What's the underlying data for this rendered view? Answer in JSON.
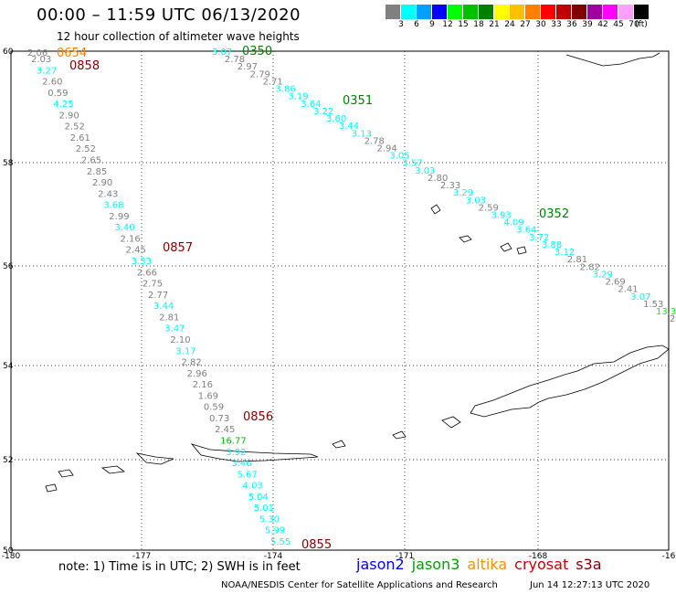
{
  "title": "00:00 – 11:59 UTC 06/13/2020",
  "subtitle": "12 hour collection of altimeter wave heights",
  "legend": {
    "colors": [
      "#808080",
      "#00ffff",
      "#00a0ff",
      "#0000ff",
      "#00ff00",
      "#00c000",
      "#008000",
      "#ffff00",
      "#ffc000",
      "#ff8000",
      "#ff0000",
      "#c00000",
      "#800000",
      "#a000a0",
      "#ff00ff",
      "#ffa0ff",
      "#000000"
    ],
    "labels": [
      "3",
      "6",
      "9",
      "12",
      "15",
      "18",
      "21",
      "24",
      "27",
      "30",
      "33",
      "36",
      "39",
      "42",
      "45",
      "70",
      "(ft)"
    ]
  },
  "axes": {
    "lon_labels": [
      "-180",
      "-177",
      "-174",
      "-171",
      "-168",
      "-16"
    ],
    "lat_labels": [
      "60",
      "58",
      "56",
      "54",
      "52",
      "50"
    ]
  },
  "tracks": [
    {
      "color": "#808080",
      "label": "0654",
      "label_color": "#ff8000",
      "points": [
        {
          "v": "2.03",
          "c": "#808080"
        },
        {
          "v": "3.27",
          "c": "#00ffff"
        },
        {
          "v": "2.60",
          "c": "#808080"
        },
        {
          "v": "0.59",
          "c": "#808080"
        },
        {
          "v": "4.25",
          "c": "#00ffff"
        },
        {
          "v": "2.90",
          "c": "#808080"
        },
        {
          "v": "2.52",
          "c": "#808080"
        },
        {
          "v": "2.61",
          "c": "#808080"
        },
        {
          "v": "2.52",
          "c": "#808080"
        },
        {
          "v": "2.65",
          "c": "#808080"
        },
        {
          "v": "2.85",
          "c": "#808080"
        },
        {
          "v": "2.90",
          "c": "#808080"
        },
        {
          "v": "2.43",
          "c": "#808080"
        },
        {
          "v": "3.68",
          "c": "#00ffff"
        },
        {
          "v": "2.99",
          "c": "#808080"
        },
        {
          "v": "3.40",
          "c": "#00ffff"
        },
        {
          "v": "2.16",
          "c": "#808080"
        },
        {
          "v": "2.45",
          "c": "#808080"
        },
        {
          "v": "3.33",
          "c": "#00ffff"
        },
        {
          "v": "2.66",
          "c": "#808080"
        },
        {
          "v": "2.75",
          "c": "#808080"
        },
        {
          "v": "2.77",
          "c": "#808080"
        },
        {
          "v": "3.44",
          "c": "#00ffff"
        },
        {
          "v": "2.81",
          "c": "#808080"
        },
        {
          "v": "3.47",
          "c": "#00ffff"
        },
        {
          "v": "2.10",
          "c": "#808080"
        },
        {
          "v": "3.17",
          "c": "#00ffff"
        },
        {
          "v": "2.82",
          "c": "#808080"
        },
        {
          "v": "2.96",
          "c": "#808080"
        },
        {
          "v": "2.16",
          "c": "#808080"
        },
        {
          "v": "1.69",
          "c": "#808080"
        },
        {
          "v": "0.59",
          "c": "#808080"
        },
        {
          "v": "0.73",
          "c": "#808080"
        },
        {
          "v": "2.45",
          "c": "#808080"
        },
        {
          "v": "16.77",
          "c": "#00c000"
        },
        {
          "v": "3.92",
          "c": "#00ffff"
        },
        {
          "v": "3.46",
          "c": "#00ffff"
        },
        {
          "v": "5.67",
          "c": "#00ffff"
        },
        {
          "v": "4.03",
          "c": "#00ffff"
        },
        {
          "v": "5.04",
          "c": "#00ffff"
        },
        {
          "v": "5.01",
          "c": "#00ffff"
        },
        {
          "v": "5.30",
          "c": "#00ffff"
        },
        {
          "v": "5.99",
          "c": "#00ffff"
        },
        {
          "v": "5.55",
          "c": "#00ffff"
        }
      ]
    },
    {
      "color": "#808080",
      "label": "0350",
      "label_color": "#008000",
      "points": [
        {
          "v": "3.07",
          "c": "#00ffff"
        },
        {
          "v": "2.78",
          "c": "#808080"
        },
        {
          "v": "2.97",
          "c": "#808080"
        },
        {
          "v": "2.79",
          "c": "#808080"
        },
        {
          "v": "2.71",
          "c": "#808080"
        },
        {
          "v": "3.86",
          "c": "#00ffff"
        },
        {
          "v": "3.19",
          "c": "#00ffff"
        },
        {
          "v": "3.64",
          "c": "#00ffff"
        },
        {
          "v": "3.22",
          "c": "#00ffff"
        },
        {
          "v": "3.60",
          "c": "#00ffff"
        },
        {
          "v": "3.44",
          "c": "#00ffff"
        },
        {
          "v": "3.13",
          "c": "#00ffff"
        },
        {
          "v": "2.78",
          "c": "#808080"
        },
        {
          "v": "2.94",
          "c": "#808080"
        },
        {
          "v": "3.05",
          "c": "#00ffff"
        },
        {
          "v": "3.57",
          "c": "#00ffff"
        },
        {
          "v": "3.03",
          "c": "#00ffff"
        },
        {
          "v": "2.80",
          "c": "#808080"
        },
        {
          "v": "2.33",
          "c": "#808080"
        },
        {
          "v": "3.29",
          "c": "#00ffff"
        },
        {
          "v": "3.03",
          "c": "#00ffff"
        },
        {
          "v": "2.59",
          "c": "#808080"
        },
        {
          "v": "3.93",
          "c": "#00ffff"
        },
        {
          "v": "4.09",
          "c": "#00ffff"
        },
        {
          "v": "3.64",
          "c": "#00ffff"
        },
        {
          "v": "3.72",
          "c": "#00ffff"
        },
        {
          "v": "3.88",
          "c": "#00ffff"
        },
        {
          "v": "3.12",
          "c": "#00ffff"
        },
        {
          "v": "2.81",
          "c": "#808080"
        },
        {
          "v": "2.82",
          "c": "#808080"
        },
        {
          "v": "3.29",
          "c": "#00ffff"
        },
        {
          "v": "2.69",
          "c": "#808080"
        },
        {
          "v": "2.41",
          "c": "#808080"
        },
        {
          "v": "3.07",
          "c": "#00ffff"
        },
        {
          "v": "1.53",
          "c": "#808080"
        },
        {
          "v": "13.3",
          "c": "#00ff00"
        }
      ]
    }
  ],
  "pass_labels": [
    {
      "text": "0654",
      "color": "#ff8000"
    },
    {
      "text": "0858",
      "color": "#800000"
    },
    {
      "text": "0350",
      "color": "#008000"
    },
    {
      "text": "0351",
      "color": "#008000"
    },
    {
      "text": "0352",
      "color": "#008000"
    },
    {
      "text": "0857",
      "color": "#800000"
    },
    {
      "text": "0856",
      "color": "#800000"
    },
    {
      "text": "0855",
      "color": "#800000"
    }
  ],
  "note": "note:  1) Time is in UTC;  2) SWH is in feet",
  "satellites": [
    {
      "name": "jason2",
      "color": "#0000ff"
    },
    {
      "name": "jason3",
      "color": "#00a000"
    },
    {
      "name": "altika",
      "color": "#ff9000"
    },
    {
      "name": "cryosat",
      "color": "#d00000"
    },
    {
      "name": "s3a",
      "color": "#800000"
    }
  ],
  "credit": "NOAA/NESDIS Center for Satellite Applications and Research",
  "timestamp": "Jun 14 12:27:13 UTC 2020",
  "extra_labels": {
    "left_stack": "2.06",
    "right_edge": "2"
  }
}
